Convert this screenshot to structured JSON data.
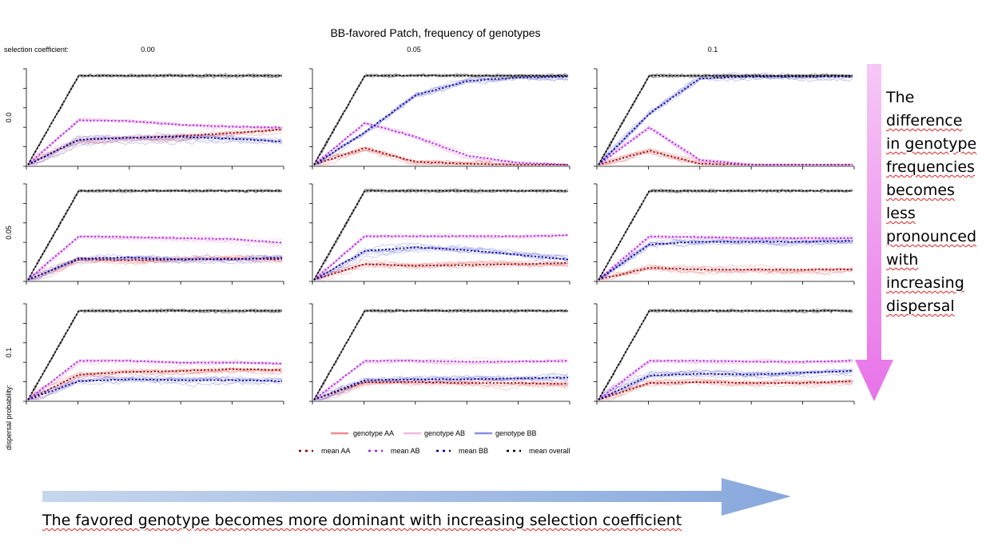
{
  "chart_data": {
    "type": "line",
    "title": "BB-favored Patch, frequency of genotypes",
    "column_header_label": "selection coefficient:",
    "row_header_label": "dispersal probability:",
    "selection_coefficients": [
      "0.00",
      "0.05",
      "0.1"
    ],
    "dispersal_probabilities": [
      "0.0",
      "0.05",
      "0.1"
    ],
    "ylim": [
      0,
      1
    ],
    "legend": {
      "lines": [
        {
          "label": "genotype AA",
          "color": "#f08a8a"
        },
        {
          "label": "genotype AB",
          "color": "#f2b8e6"
        },
        {
          "label": "genotype BB",
          "color": "#8a8ae6"
        }
      ],
      "means": [
        {
          "label": "mean AA",
          "color": "#8b0000"
        },
        {
          "label": "mean AB",
          "color": "#a020f0"
        },
        {
          "label": "mean BB",
          "color": "#00008b"
        },
        {
          "label": "mean overall",
          "color": "#000000"
        }
      ]
    },
    "panels": [
      {
        "dispersal": "0.0",
        "selection": "0.00",
        "mean_AA": [
          0.0,
          0.27,
          0.29,
          0.31,
          0.34,
          0.38
        ],
        "mean_AB": [
          0.0,
          0.48,
          0.47,
          0.43,
          0.41,
          0.4
        ],
        "mean_BB": [
          0.0,
          0.27,
          0.29,
          0.3,
          0.28,
          0.25
        ],
        "mean_overall": [
          0.0,
          0.96,
          0.96,
          0.96,
          0.96,
          0.96
        ]
      },
      {
        "dispersal": "0.0",
        "selection": "0.05",
        "mean_AA": [
          0.0,
          0.18,
          0.03,
          0.01,
          0.0,
          0.0
        ],
        "mean_AB": [
          0.0,
          0.45,
          0.3,
          0.1,
          0.02,
          0.0
        ],
        "mean_BB": [
          0.0,
          0.35,
          0.75,
          0.9,
          0.94,
          0.95
        ],
        "mean_overall": [
          0.0,
          0.96,
          0.96,
          0.96,
          0.96,
          0.96
        ]
      },
      {
        "dispersal": "0.0",
        "selection": "0.1",
        "mean_AA": [
          0.0,
          0.15,
          0.01,
          0.0,
          0.0,
          0.0
        ],
        "mean_AB": [
          0.0,
          0.4,
          0.05,
          0.0,
          0.0,
          0.0
        ],
        "mean_BB": [
          0.0,
          0.55,
          0.93,
          0.95,
          0.95,
          0.95
        ],
        "mean_overall": [
          0.0,
          0.96,
          0.96,
          0.96,
          0.96,
          0.96
        ]
      },
      {
        "dispersal": "0.05",
        "selection": "0.00",
        "mean_AA": [
          0.0,
          0.22,
          0.21,
          0.22,
          0.23,
          0.22
        ],
        "mean_AB": [
          0.0,
          0.47,
          0.46,
          0.45,
          0.44,
          0.4
        ],
        "mean_BB": [
          0.0,
          0.23,
          0.24,
          0.22,
          0.22,
          0.24
        ],
        "mean_overall": [
          0.0,
          0.96,
          0.96,
          0.96,
          0.96,
          0.96
        ]
      },
      {
        "dispersal": "0.05",
        "selection": "0.05",
        "mean_AA": [
          0.0,
          0.17,
          0.15,
          0.16,
          0.17,
          0.18
        ],
        "mean_AB": [
          0.0,
          0.47,
          0.47,
          0.47,
          0.47,
          0.48
        ],
        "mean_BB": [
          0.0,
          0.31,
          0.35,
          0.32,
          0.27,
          0.22
        ],
        "mean_overall": [
          0.0,
          0.96,
          0.96,
          0.96,
          0.96,
          0.96
        ]
      },
      {
        "dispersal": "0.05",
        "selection": "0.1",
        "mean_AA": [
          0.0,
          0.13,
          0.11,
          0.11,
          0.11,
          0.11
        ],
        "mean_AB": [
          0.0,
          0.47,
          0.46,
          0.45,
          0.45,
          0.45
        ],
        "mean_BB": [
          0.0,
          0.38,
          0.41,
          0.41,
          0.41,
          0.42
        ],
        "mean_overall": [
          0.0,
          0.96,
          0.96,
          0.96,
          0.96,
          0.96
        ]
      },
      {
        "dispersal": "0.1",
        "selection": "0.00",
        "mean_AA": [
          0.0,
          0.27,
          0.3,
          0.31,
          0.33,
          0.32
        ],
        "mean_AB": [
          0.0,
          0.42,
          0.42,
          0.4,
          0.4,
          0.39
        ],
        "mean_BB": [
          0.0,
          0.2,
          0.22,
          0.21,
          0.21,
          0.2
        ],
        "mean_overall": [
          0.0,
          0.96,
          0.96,
          0.96,
          0.96,
          0.96
        ]
      },
      {
        "dispersal": "0.1",
        "selection": "0.05",
        "mean_AA": [
          0.0,
          0.19,
          0.19,
          0.18,
          0.18,
          0.17
        ],
        "mean_AB": [
          0.0,
          0.42,
          0.42,
          0.41,
          0.41,
          0.42
        ],
        "mean_BB": [
          0.0,
          0.21,
          0.22,
          0.22,
          0.23,
          0.24
        ],
        "mean_overall": [
          0.0,
          0.96,
          0.96,
          0.96,
          0.96,
          0.96
        ]
      },
      {
        "dispersal": "0.1",
        "selection": "0.1",
        "mean_AA": [
          0.0,
          0.18,
          0.19,
          0.18,
          0.18,
          0.2
        ],
        "mean_AB": [
          0.0,
          0.42,
          0.42,
          0.41,
          0.41,
          0.42
        ],
        "mean_BB": [
          0.0,
          0.26,
          0.28,
          0.27,
          0.29,
          0.31
        ],
        "mean_overall": [
          0.0,
          0.96,
          0.96,
          0.96,
          0.96,
          0.96
        ]
      }
    ]
  },
  "annotations": {
    "right_text": [
      "The",
      "difference",
      "in genotype",
      "frequencies",
      "becomes",
      "less",
      "pronounced",
      "with",
      "increasing",
      "dispersal"
    ],
    "bottom_text": "The favored genotype becomes more dominant with increasing selection coefficient",
    "down_arrow_color": "#ee82ee",
    "right_arrow_color": "#8eaadb"
  }
}
